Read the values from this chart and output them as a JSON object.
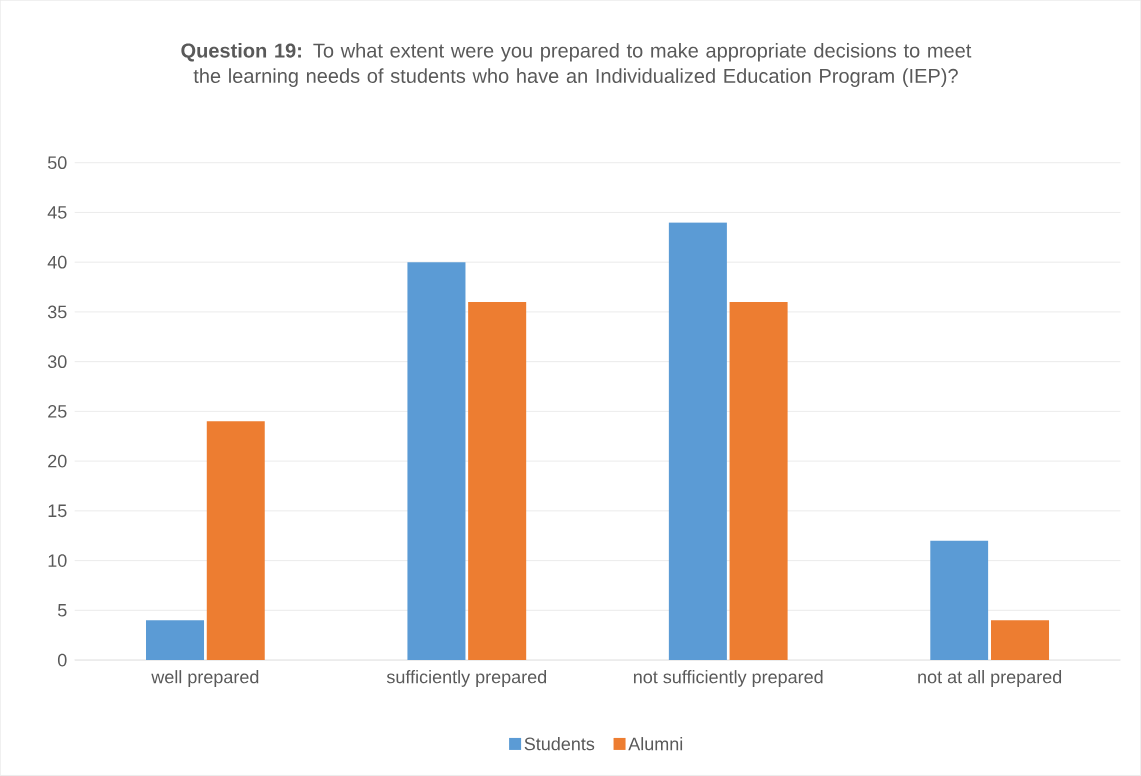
{
  "chart_data": {
    "type": "bar",
    "title": "**Question 19:** To what extent were you prepared to make appropriate decisions to meet the learning needs of students who have an Individualized Education Program (IEP)?",
    "categories": [
      "well prepared",
      "sufficiently prepared",
      "not sufficiently prepared",
      "not at all prepared"
    ],
    "series": [
      {
        "name": "Students",
        "color": "#5b9bd5",
        "values": [
          4,
          40,
          44,
          12
        ]
      },
      {
        "name": "Alumni",
        "color": "#ed7d31",
        "values": [
          24,
          36,
          36,
          4
        ]
      }
    ],
    "ylim": [
      0,
      50
    ],
    "yticks": [
      0,
      5,
      10,
      15,
      20,
      25,
      30,
      35,
      40,
      45,
      50
    ],
    "grid": "y",
    "legend": "bottom"
  }
}
